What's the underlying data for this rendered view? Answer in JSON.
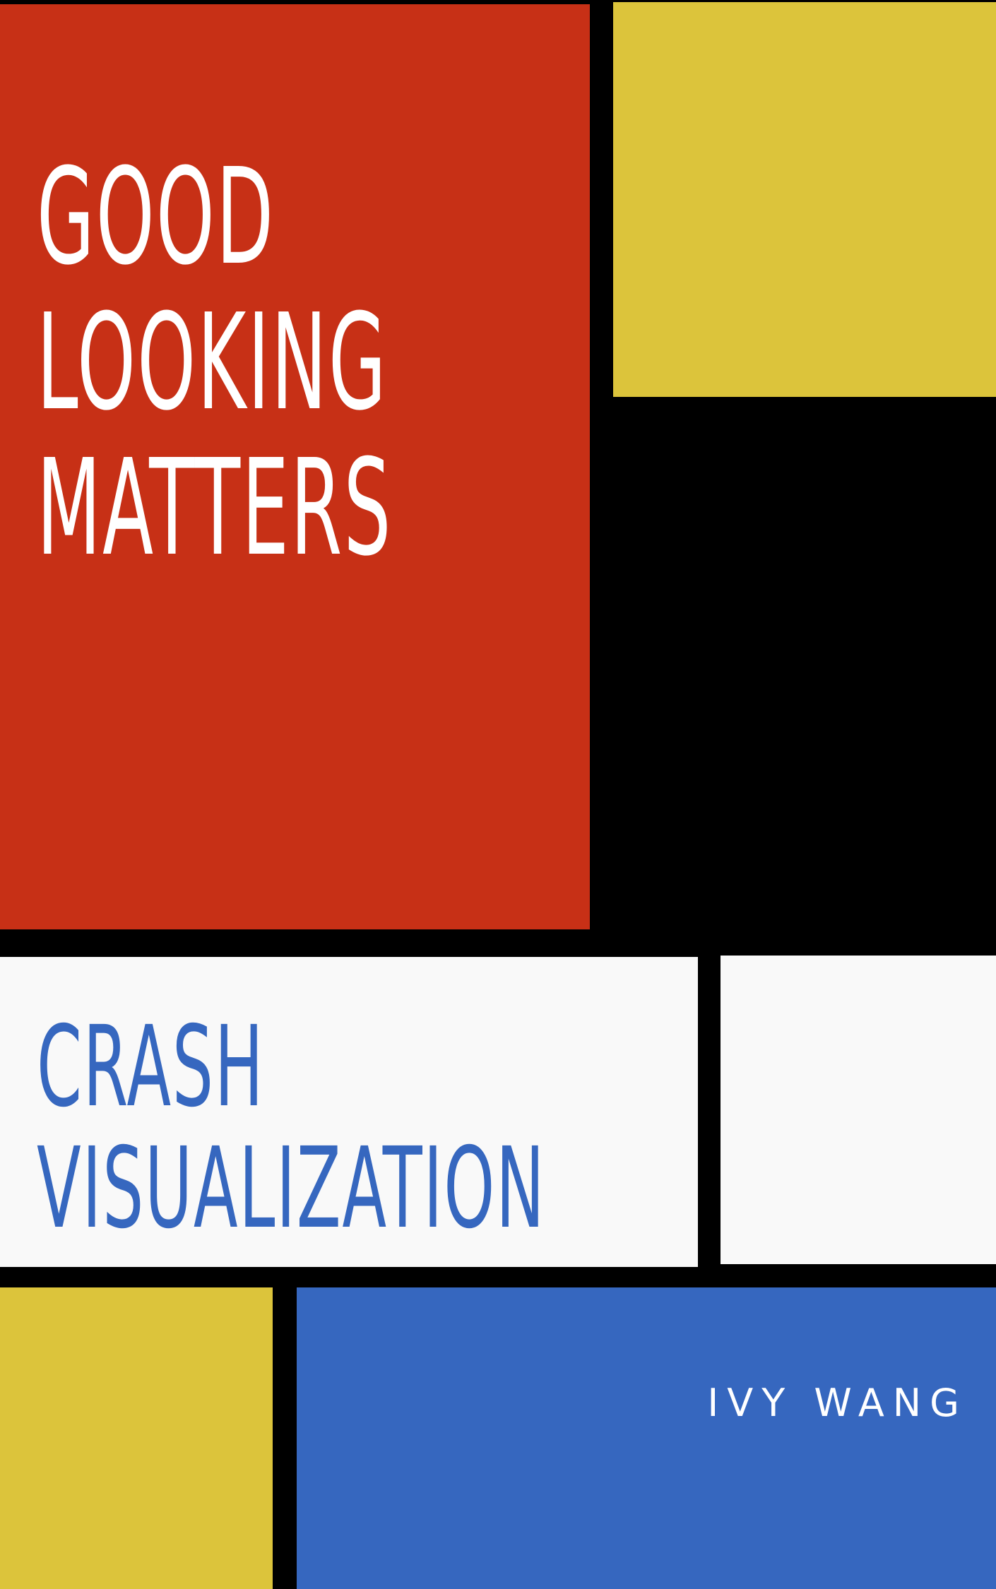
{
  "cover": {
    "title_lines": [
      "GOOD",
      "LOOKING",
      "MATTERS"
    ],
    "subtitle_lines": [
      "CRASH",
      "VISUALIZATION"
    ],
    "author": "IVY WANG"
  },
  "colors": {
    "background": "#000000",
    "red": "#c73016",
    "yellow": "#dcc43b",
    "white": "#f9f9f9",
    "blue": "#3667bf",
    "title_text": "#ffffff",
    "subtitle_text": "#3667bf",
    "author_text": "#ffffff"
  }
}
